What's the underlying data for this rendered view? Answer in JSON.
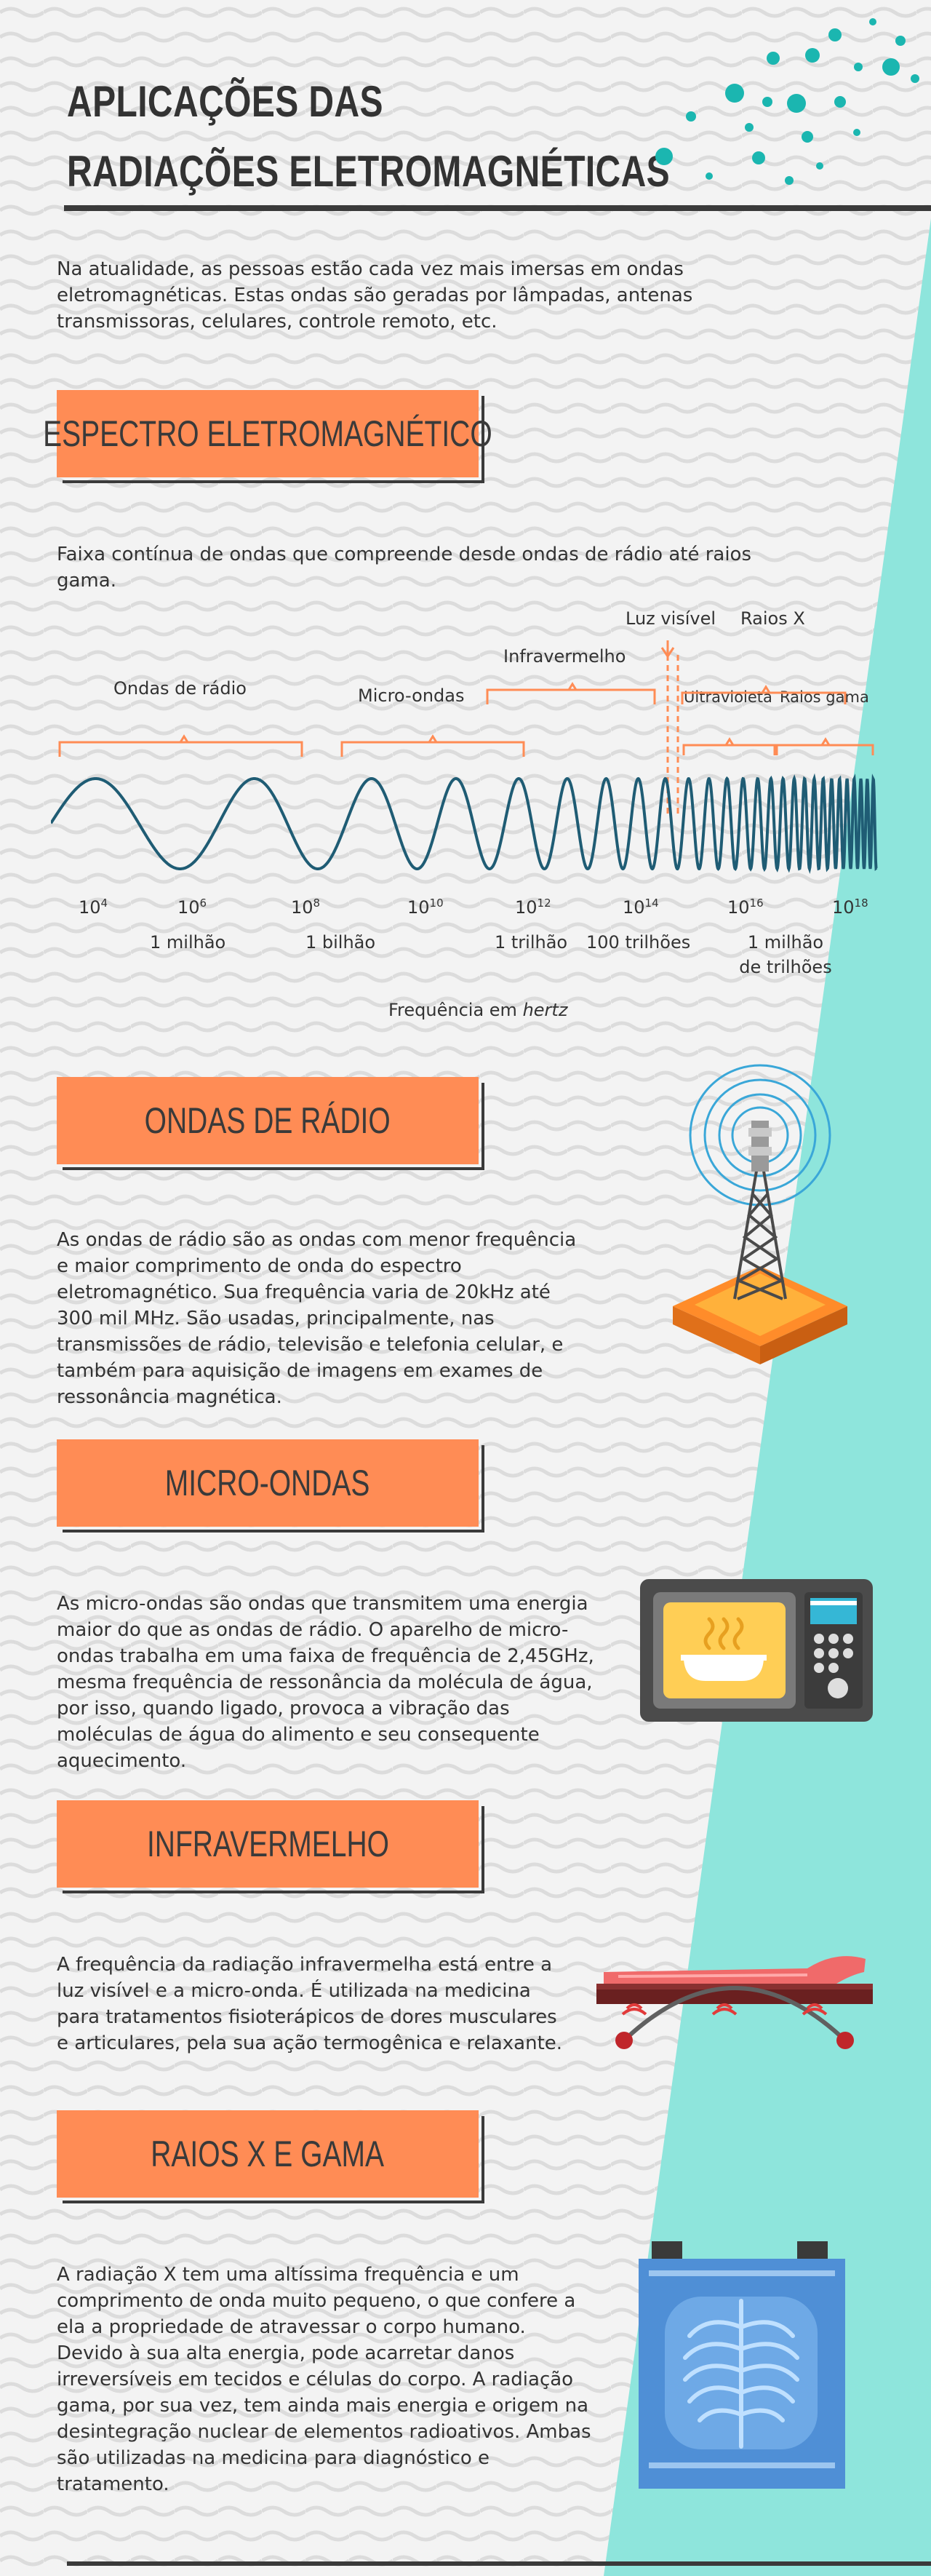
{
  "header": {
    "title_line1": "APLICAÇÕES DAS",
    "title_line2": "RADIAÇÕES ELETROMAGNÉTICAS"
  },
  "intro": "Na atualidade, as pessoas estão cada vez mais imersas em ondas eletromagnéticas. Estas ondas são geradas por lâmpadas, antenas transmissoras, celulares, controle remoto, etc.",
  "spectrum": {
    "heading": "ESPECTRO ELETROMAGNÉTICO",
    "description": "Faixa contínua de ondas que compreende desde ondas de rádio até raios gama.",
    "bands": {
      "radio": "Ondas de rádio",
      "micro": "Micro-ondas",
      "infra": "Infravermelho",
      "visible": "Luz visível",
      "xray": "Raios X",
      "uv": "Ultravioleta",
      "gamma": "Raios gama"
    },
    "ticks": [
      "4",
      "6",
      "8",
      "10",
      "12",
      "14",
      "16",
      "18"
    ],
    "tick_base": "10",
    "tick_subs": {
      "t6": "1 milhão",
      "t8": "1 bilhão",
      "t12": "1 trilhão",
      "t14": "100 trilhões",
      "t16_a": "1 milhão",
      "t16_b": "de trilhões"
    },
    "axis_label": "Frequência em",
    "axis_unit": "hertz"
  },
  "sections": {
    "radio": {
      "heading": "ONDAS DE RÁDIO",
      "text": "As ondas de rádio são as ondas com menor frequência e maior comprimento de onda do espectro eletromagnético. Sua frequência varia de 20kHz até 300 mil MHz. São usadas, principalmente, nas transmissões de rádio, televisão e telefonia celular, e também para aquisição de imagens em exames de ressonância magnética."
    },
    "micro": {
      "heading": "MICRO-ONDAS",
      "text": "As micro-ondas são ondas que transmitem uma energia maior do que as ondas de rádio. O aparelho de micro-ondas trabalha em uma faixa de frequência de 2,45GHz, mesma frequência de ressonância da molécula de água, por isso, quando ligado, provoca a vibração das moléculas de água do alimento e seu consequente aquecimento."
    },
    "infra": {
      "heading": "INFRAVERMELHO",
      "text": "A frequência da radiação infravermelha está entre a luz visível e a micro-onda. É utilizada na medicina para tratamentos fisioterápicos de dores musculares e articulares, pela sua ação termogênica e relaxante."
    },
    "xray": {
      "heading": "RAIOS X E GAMA",
      "text": "A radiação X tem uma altíssima frequência e um comprimento de onda muito pequeno, o que confere a ela a propriedade de atravessar o corpo humano. Devido à sua alta energia, pode acarretar danos irreversíveis em tecidos e células do corpo. A radiação gama, por sua vez, tem ainda mais energia e origem na desintegração nuclear de elementos radioativos. Ambas são utilizadas na medicina para diagnóstico e tratamento."
    }
  },
  "colors": {
    "accent_orange": "#ff8c55",
    "teal": "#8ee5dc",
    "dots": "#1bb6b0",
    "wave": "#1f5c74",
    "dark": "#3a3a3a"
  },
  "icons": [
    "radio-tower-icon",
    "microwave-icon",
    "infrared-bed-icon",
    "xray-panel-icon"
  ]
}
